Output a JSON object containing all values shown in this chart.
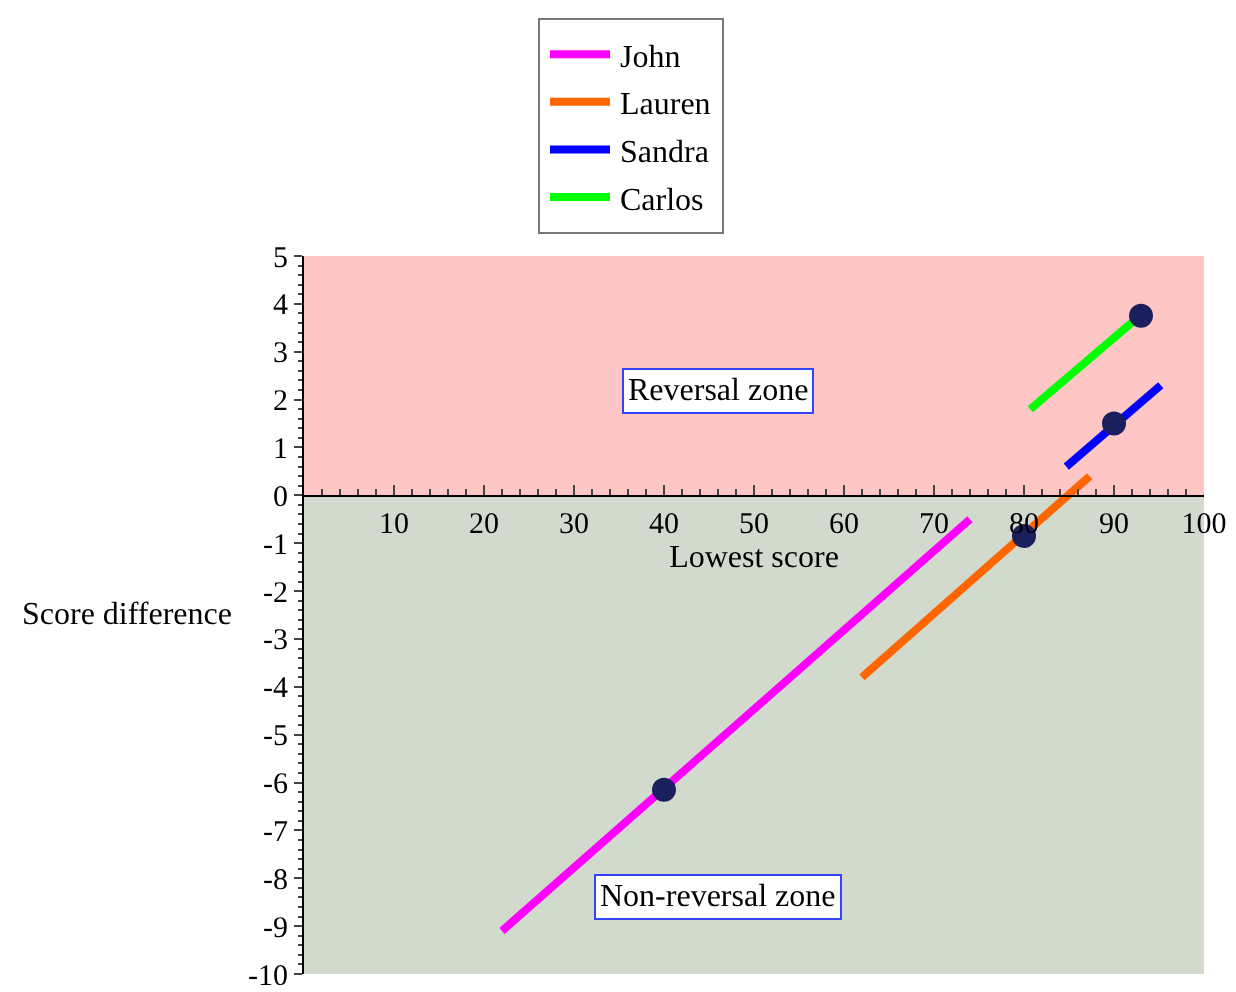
{
  "chart_data": {
    "type": "line",
    "xlabel": "Lowest score",
    "ylabel": "Score difference",
    "xlim": [
      0,
      100
    ],
    "xticks": [
      10,
      20,
      30,
      40,
      50,
      60,
      70,
      80,
      90,
      100
    ],
    "ylim": [
      -10,
      5
    ],
    "yticks": [
      -10,
      -9,
      -8,
      -7,
      -6,
      -5,
      -4,
      -3,
      -2,
      -1,
      0,
      1,
      2,
      3,
      4,
      5
    ],
    "grid": false,
    "legend": "top",
    "marker": "none",
    "series": [
      {
        "name": "John",
        "color": "#ff00ff",
        "x": [
          22,
          74
        ],
        "values": [
          -9.1,
          -0.5
        ]
      },
      {
        "name": "Lauren",
        "color": "#ff6600",
        "x": [
          62,
          87.3
        ],
        "values": [
          -3.8,
          0.4
        ]
      },
      {
        "name": "Sandra",
        "color": "#0000ff",
        "x": [
          84.7,
          95.2
        ],
        "values": [
          0.6,
          2.3
        ]
      },
      {
        "name": "Carlos",
        "color": "#00ff00",
        "x": [
          80.7,
          93.8
        ],
        "values": [
          1.8,
          3.9
        ]
      },
      {
        "type": "scatter",
        "marker": "circle",
        "color": "#1a1f5e",
        "x": [
          40,
          80,
          90,
          93
        ],
        "values": [
          -6.15,
          -0.85,
          1.5,
          3.75
        ]
      }
    ],
    "bands": [
      {
        "axis": "y",
        "from": 0,
        "to": 5,
        "color": "#ff3333",
        "label": "Reversal zone"
      },
      {
        "axis": "y",
        "from": -10,
        "to": 0,
        "color": "#5a7a4a",
        "label": "Non-reversal zone"
      }
    ]
  }
}
